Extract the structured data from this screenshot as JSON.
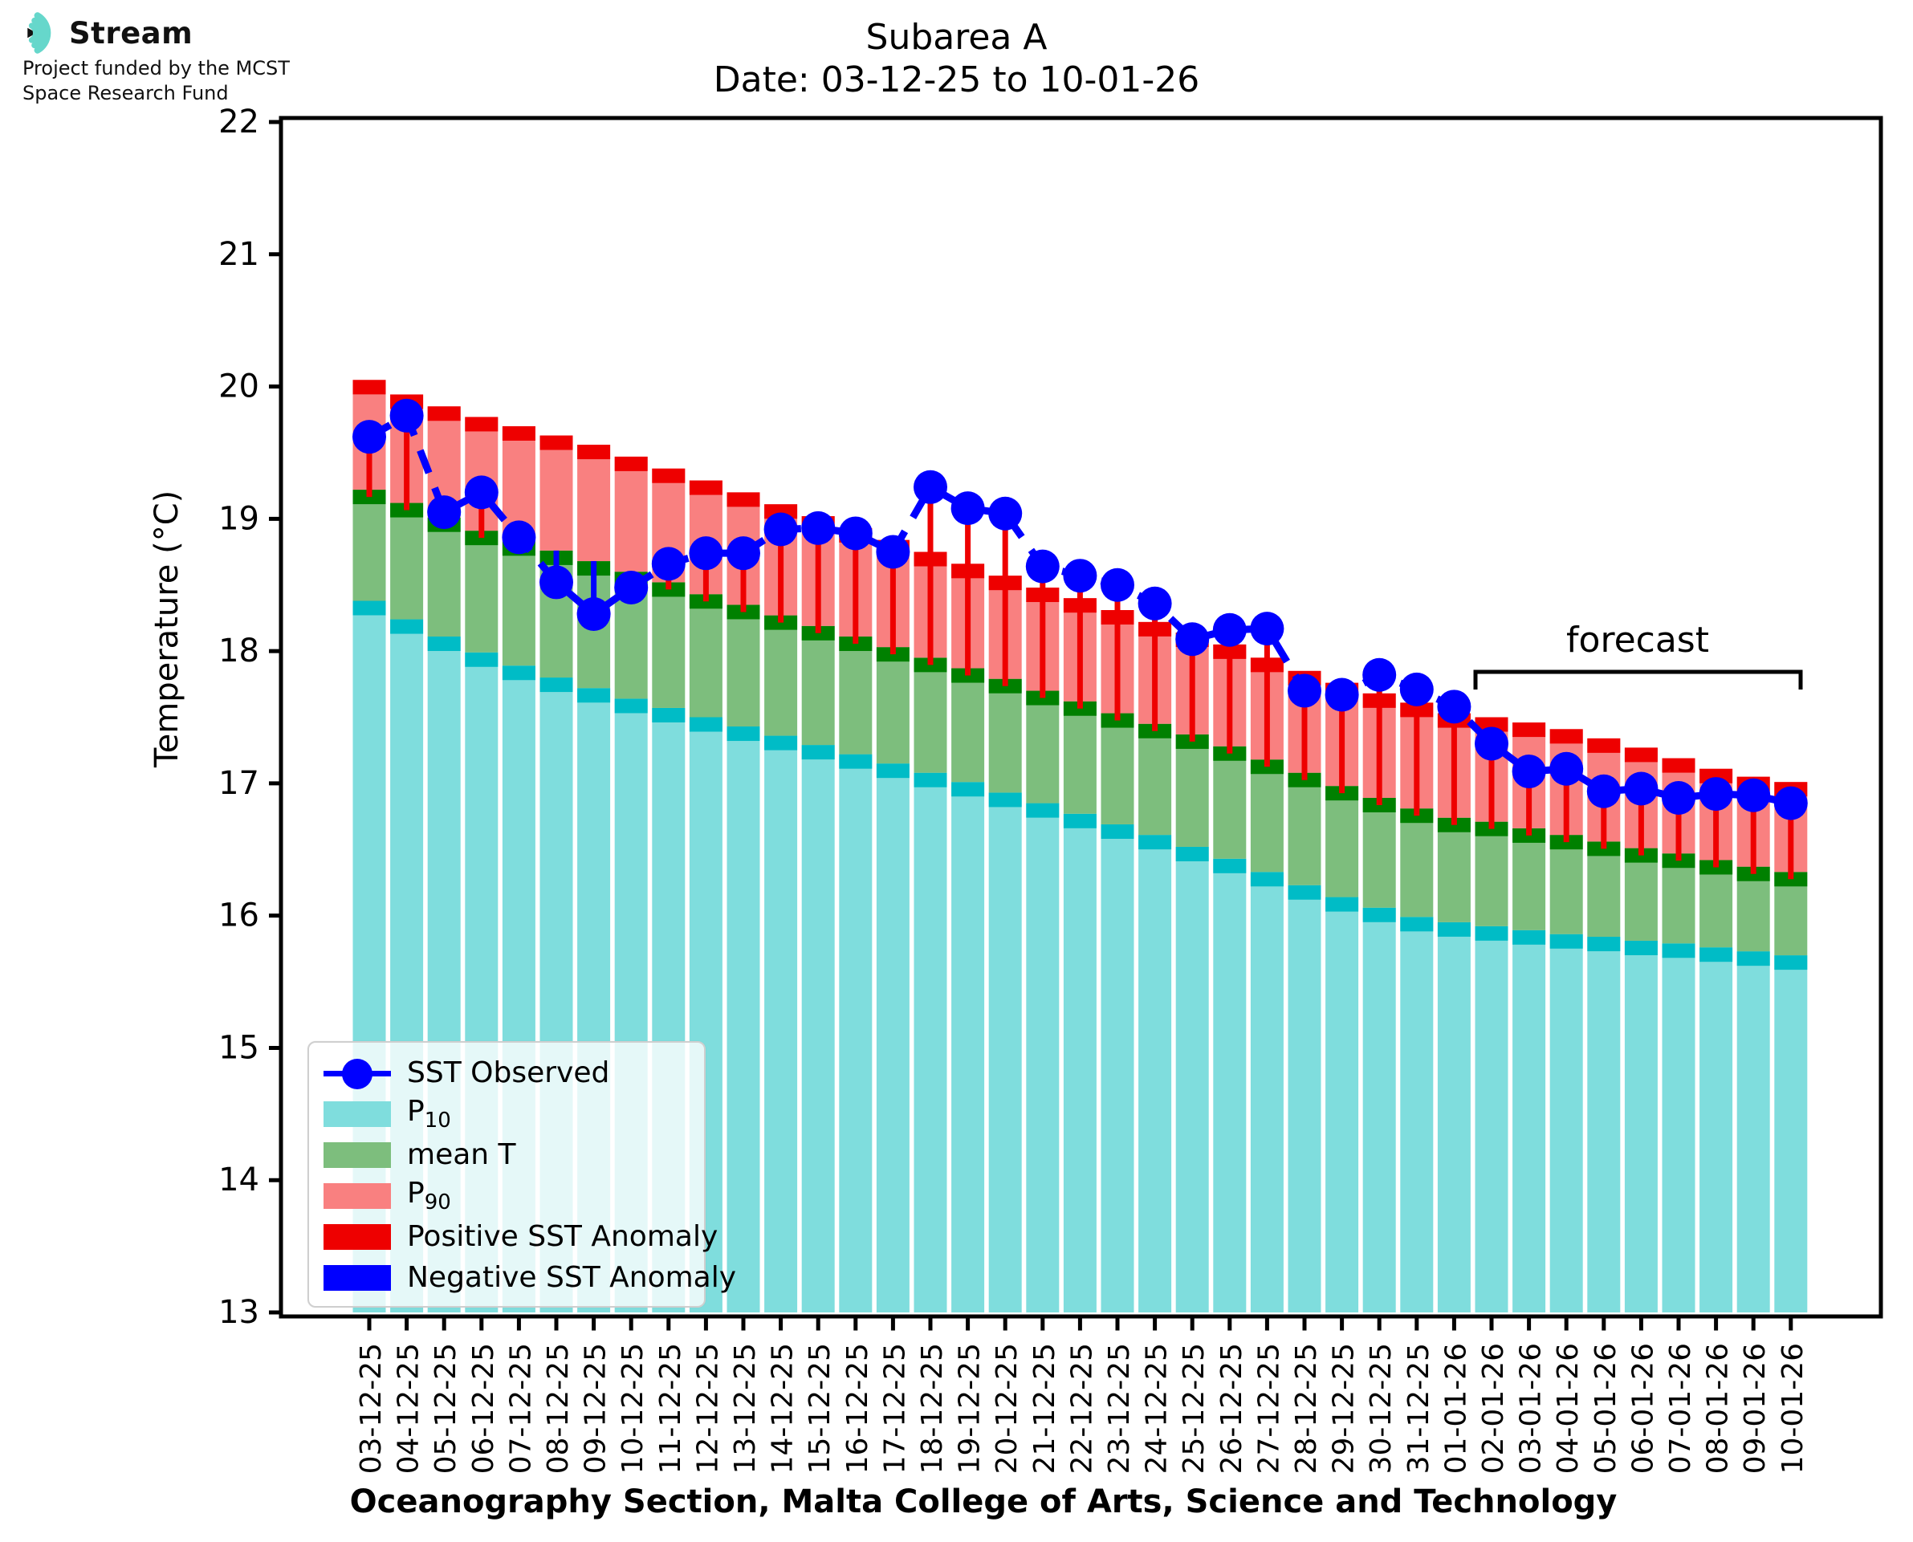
{
  "logo": {
    "brand": "Stream",
    "funding_line1": "Project funded by the MCST",
    "funding_line2": "Space Research Fund"
  },
  "title": {
    "line1": "Subarea A",
    "line2": "Date: 03-12-25 to 10-01-26"
  },
  "axes": {
    "y_label": "Temperature (°C)",
    "x_label": "Oceanography Section, Malta College of Arts, Science and Technology",
    "y_ticks": [
      13,
      14,
      15,
      16,
      17,
      18,
      19,
      20,
      21,
      22
    ],
    "y_min": 13,
    "y_max": 22
  },
  "annotations": {
    "forecast_label": "forecast",
    "forecast_start_date": "02-01-26",
    "forecast_end_date": "10-01-26"
  },
  "legend": {
    "items": [
      {
        "name": "sst-observed",
        "label": "SST Observed",
        "sub": "",
        "type": "marker-line",
        "color": "#0000ff"
      },
      {
        "name": "p10",
        "label": "P",
        "sub": "10",
        "type": "patch",
        "color": "#7fdddd"
      },
      {
        "name": "mean-t",
        "label": "mean T",
        "sub": "",
        "type": "patch",
        "color": "#7dbe7d"
      },
      {
        "name": "p90",
        "label": "P",
        "sub": "90",
        "type": "patch",
        "color": "#f98080"
      },
      {
        "name": "positive-sst-anomaly",
        "label": "Positive SST Anomaly",
        "sub": "",
        "type": "patch",
        "color": "#ee0000"
      },
      {
        "name": "negative-sst-anomaly",
        "label": "Negative SST Anomaly",
        "sub": "",
        "type": "patch",
        "color": "#0000ff"
      }
    ]
  },
  "colors": {
    "p10_fill": "#7fdddd",
    "p10_cap": "#00bcc6",
    "mean_fill": "#7dbe7d",
    "mean_cap": "#008000",
    "p90_fill": "#f98080",
    "p90_cap": "#ee0000",
    "positive_anomaly": "#ee0000",
    "negative_anomaly": "#0000ff",
    "observed": "#0000ff",
    "logo_teal": "#66d7cb"
  },
  "chart_data": {
    "type": "bar",
    "title": "Subarea A — Date: 03-12-25 to 10-01-26",
    "xlabel": "Oceanography Section, Malta College of Arts, Science and Technology",
    "ylabel": "Temperature (°C)",
    "ylim": [
      13,
      22
    ],
    "grid": false,
    "legend_position": "lower-left",
    "forecast_from_index": 30,
    "categories": [
      "03-12-25",
      "04-12-25",
      "05-12-25",
      "06-12-25",
      "07-12-25",
      "08-12-25",
      "09-12-25",
      "10-12-25",
      "11-12-25",
      "12-12-25",
      "13-12-25",
      "14-12-25",
      "15-12-25",
      "16-12-25",
      "17-12-25",
      "18-12-25",
      "19-12-25",
      "20-12-25",
      "21-12-25",
      "22-12-25",
      "23-12-25",
      "24-12-25",
      "25-12-25",
      "26-12-25",
      "27-12-25",
      "28-12-25",
      "29-12-25",
      "30-12-25",
      "31-12-25",
      "01-01-26",
      "02-01-26",
      "03-01-26",
      "04-01-26",
      "05-01-26",
      "06-01-26",
      "07-01-26",
      "08-01-26",
      "09-01-26",
      "10-01-26"
    ],
    "series": [
      {
        "name": "P10",
        "values": [
          18.38,
          18.24,
          18.11,
          17.99,
          17.89,
          17.8,
          17.72,
          17.64,
          17.57,
          17.5,
          17.43,
          17.36,
          17.29,
          17.22,
          17.15,
          17.08,
          17.01,
          16.93,
          16.85,
          16.77,
          16.69,
          16.61,
          16.52,
          16.43,
          16.33,
          16.23,
          16.14,
          16.06,
          15.99,
          15.95,
          15.92,
          15.89,
          15.86,
          15.84,
          15.81,
          15.79,
          15.76,
          15.73,
          15.7
        ]
      },
      {
        "name": "mean T",
        "values": [
          19.22,
          19.12,
          19.01,
          18.91,
          18.83,
          18.76,
          18.68,
          18.6,
          18.52,
          18.43,
          18.35,
          18.27,
          18.19,
          18.11,
          18.03,
          17.95,
          17.87,
          17.79,
          17.7,
          17.62,
          17.53,
          17.45,
          17.37,
          17.28,
          17.18,
          17.08,
          16.98,
          16.89,
          16.81,
          16.74,
          16.71,
          16.66,
          16.61,
          16.56,
          16.51,
          16.47,
          16.42,
          16.37,
          16.33
        ]
      },
      {
        "name": "P90",
        "values": [
          20.05,
          19.94,
          19.85,
          19.77,
          19.7,
          19.63,
          19.56,
          19.47,
          19.38,
          19.29,
          19.2,
          19.11,
          19.02,
          18.93,
          18.84,
          18.75,
          18.66,
          18.57,
          18.48,
          18.4,
          18.31,
          18.22,
          18.14,
          18.05,
          17.95,
          17.85,
          17.76,
          17.68,
          17.61,
          17.53,
          17.5,
          17.46,
          17.41,
          17.34,
          17.27,
          17.19,
          17.11,
          17.05,
          17.01
        ]
      },
      {
        "name": "SST Observed",
        "values": [
          19.62,
          19.78,
          19.05,
          19.2,
          18.86,
          18.52,
          18.28,
          18.48,
          18.66,
          18.74,
          18.74,
          18.92,
          18.93,
          18.89,
          18.75,
          19.24,
          19.08,
          19.04,
          18.64,
          18.57,
          18.5,
          18.36,
          18.09,
          18.16,
          18.17,
          17.7,
          17.67,
          17.82,
          17.71,
          17.58,
          17.3,
          17.09,
          17.11,
          16.94,
          16.96,
          16.89,
          16.92,
          16.91,
          16.85
        ]
      }
    ]
  }
}
